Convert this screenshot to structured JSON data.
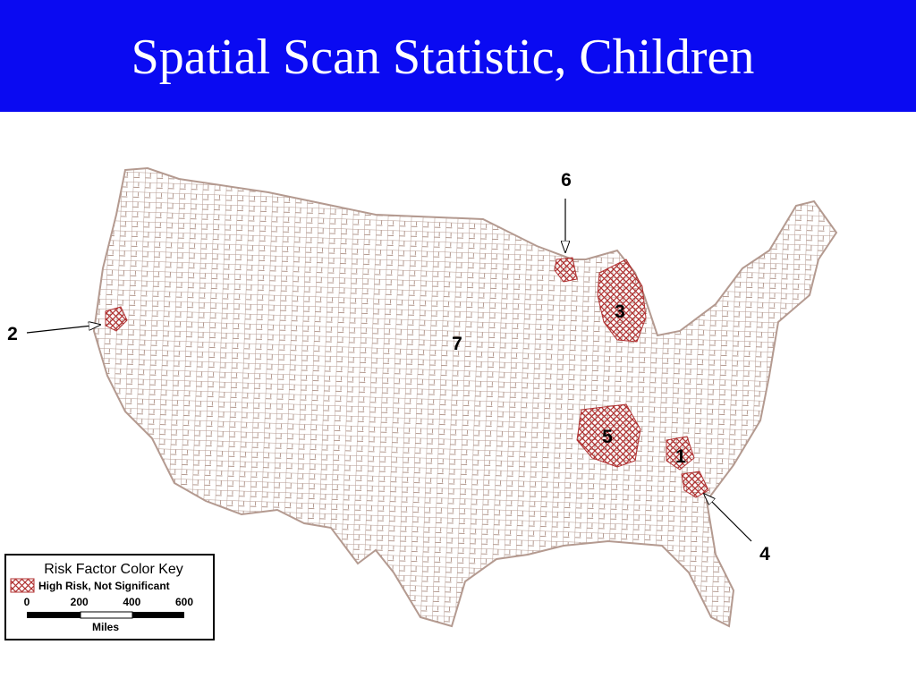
{
  "title": "Spatial Scan Statistic, Children",
  "cluster_labels": [
    "1",
    "2",
    "3",
    "4",
    "5",
    "6",
    "7"
  ],
  "legend": {
    "title": "Risk Factor Color Key",
    "items": [
      "High Risk, Not Significant"
    ],
    "scale": {
      "ticks": [
        0,
        200,
        400,
        600
      ],
      "unit": "Miles"
    }
  }
}
